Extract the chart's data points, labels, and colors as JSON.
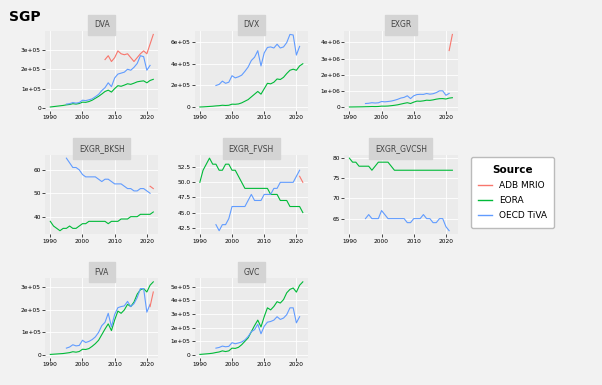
{
  "title": "SGP",
  "panels": [
    {
      "name": "DVA",
      "row": 0,
      "col": 0
    },
    {
      "name": "DVX",
      "row": 0,
      "col": 1
    },
    {
      "name": "EXGR",
      "row": 0,
      "col": 2
    },
    {
      "name": "EXGR_BKSH",
      "row": 1,
      "col": 0
    },
    {
      "name": "EXGR_FVSH",
      "row": 1,
      "col": 1
    },
    {
      "name": "EXGR_GVCSH",
      "row": 1,
      "col": 2
    },
    {
      "name": "FVA",
      "row": 2,
      "col": 0
    },
    {
      "name": "GVC",
      "row": 2,
      "col": 1
    }
  ],
  "years_adb": [
    2007,
    2008,
    2009,
    2010,
    2011,
    2012,
    2013,
    2014,
    2015,
    2016,
    2017,
    2018,
    2019,
    2020,
    2021,
    2022
  ],
  "years_eora": [
    1990,
    1991,
    1992,
    1993,
    1994,
    1995,
    1996,
    1997,
    1998,
    1999,
    2000,
    2001,
    2002,
    2003,
    2004,
    2005,
    2006,
    2007,
    2008,
    2009,
    2010,
    2011,
    2012,
    2013,
    2014,
    2015,
    2016,
    2017,
    2018,
    2019,
    2020,
    2021,
    2022
  ],
  "years_oecd": [
    1995,
    1996,
    1997,
    1998,
    1999,
    2000,
    2001,
    2002,
    2003,
    2004,
    2005,
    2006,
    2007,
    2008,
    2009,
    2010,
    2011,
    2012,
    2013,
    2014,
    2015,
    2016,
    2017,
    2018,
    2019,
    2020,
    2021
  ],
  "DVA": {
    "eora": [
      5000,
      7000,
      9000,
      11000,
      13000,
      16000,
      18000,
      22000,
      20000,
      23000,
      30000,
      29000,
      33000,
      40000,
      50000,
      60000,
      72000,
      85000,
      92000,
      82000,
      100000,
      115000,
      112000,
      118000,
      125000,
      122000,
      128000,
      135000,
      138000,
      140000,
      130000,
      142000,
      148000
    ],
    "oecd": [
      20000,
      22000,
      28000,
      25000,
      28000,
      40000,
      38000,
      42000,
      47000,
      58000,
      70000,
      90000,
      105000,
      130000,
      110000,
      155000,
      175000,
      180000,
      185000,
      200000,
      195000,
      210000,
      230000,
      270000,
      265000,
      195000,
      220000
    ],
    "adb": [
      null,
      null,
      null,
      null,
      null,
      null,
      null,
      null,
      null,
      null,
      null,
      null,
      null,
      null,
      null,
      null,
      null,
      250000,
      270000,
      240000,
      260000,
      295000,
      280000,
      275000,
      280000,
      260000,
      240000,
      260000,
      280000,
      295000,
      280000,
      330000,
      380000
    ]
  },
  "DVX": {
    "eora": [
      2000,
      3000,
      5000,
      7000,
      9000,
      12000,
      14000,
      18000,
      16000,
      18000,
      28000,
      27000,
      30000,
      40000,
      55000,
      70000,
      95000,
      120000,
      145000,
      120000,
      170000,
      220000,
      215000,
      230000,
      260000,
      255000,
      275000,
      310000,
      340000,
      350000,
      340000,
      380000,
      400000
    ],
    "oecd": [
      200000,
      210000,
      240000,
      220000,
      230000,
      290000,
      270000,
      280000,
      295000,
      330000,
      370000,
      430000,
      460000,
      520000,
      380000,
      500000,
      550000,
      555000,
      545000,
      580000,
      545000,
      555000,
      595000,
      670000,
      665000,
      480000,
      560000
    ],
    "adb": [
      null,
      null,
      null,
      null,
      null,
      null,
      null,
      null,
      null,
      null,
      null,
      null,
      null,
      null,
      null,
      null,
      null,
      null,
      null,
      null,
      null,
      null,
      null,
      null,
      null,
      null,
      null,
      null,
      null,
      null,
      null,
      null,
      null
    ]
  },
  "EXGR": {
    "eora": [
      5000,
      7000,
      10000,
      13000,
      16000,
      22000,
      26000,
      34000,
      30000,
      36000,
      58000,
      56000,
      65000,
      85000,
      110000,
      140000,
      185000,
      230000,
      270000,
      220000,
      305000,
      370000,
      360000,
      385000,
      425000,
      415000,
      445000,
      490000,
      520000,
      525000,
      500000,
      555000,
      580000
    ],
    "oecd": [
      220000,
      235000,
      270000,
      250000,
      265000,
      345000,
      325000,
      345000,
      370000,
      420000,
      480000,
      560000,
      600000,
      700000,
      525000,
      700000,
      775000,
      790000,
      785000,
      840000,
      800000,
      825000,
      895000,
      1005000,
      1005000,
      730000,
      845000
    ],
    "adb": [
      null,
      null,
      null,
      null,
      null,
      null,
      null,
      null,
      null,
      null,
      null,
      null,
      null,
      null,
      null,
      null,
      null,
      null,
      null,
      null,
      null,
      null,
      null,
      null,
      null,
      null,
      null,
      null,
      null,
      null,
      null,
      3500000,
      4500000
    ]
  },
  "EXGR_BKSH": {
    "eora": [
      38,
      36,
      35,
      34,
      35,
      35,
      36,
      35,
      35,
      36,
      37,
      37,
      38,
      38,
      38,
      38,
      38,
      38,
      37,
      38,
      38,
      38,
      39,
      39,
      39,
      40,
      40,
      40,
      41,
      41,
      41,
      41,
      42
    ],
    "oecd": [
      65,
      63,
      61,
      61,
      60,
      58,
      57,
      57,
      57,
      57,
      56,
      55,
      56,
      56,
      55,
      54,
      54,
      54,
      53,
      52,
      52,
      51,
      51,
      52,
      52,
      51,
      50
    ],
    "adb": [
      null,
      null,
      null,
      null,
      null,
      null,
      null,
      null,
      null,
      null,
      null,
      null,
      null,
      null,
      null,
      null,
      null,
      null,
      null,
      null,
      null,
      null,
      null,
      null,
      null,
      null,
      null,
      null,
      null,
      null,
      null,
      53,
      52
    ]
  },
  "EXGR_FVSH": {
    "eora": [
      50,
      52,
      53,
      54,
      53,
      53,
      52,
      52,
      53,
      53,
      52,
      52,
      51,
      50,
      49,
      49,
      49,
      49,
      49,
      49,
      49,
      49,
      48,
      48,
      48,
      47,
      47,
      47,
      46,
      46,
      46,
      46,
      45
    ],
    "oecd": [
      43,
      42,
      43,
      43,
      44,
      46,
      46,
      46,
      46,
      46,
      47,
      48,
      47,
      47,
      47,
      48,
      48,
      48,
      49,
      49,
      50,
      50,
      50,
      50,
      50,
      51,
      52
    ],
    "adb": [
      null,
      null,
      null,
      null,
      null,
      null,
      null,
      null,
      null,
      null,
      null,
      null,
      null,
      null,
      null,
      null,
      null,
      null,
      null,
      null,
      null,
      null,
      null,
      null,
      null,
      null,
      null,
      null,
      null,
      null,
      null,
      51,
      50
    ]
  },
  "EXGR_GVCSH": {
    "eora": [
      80,
      79,
      79,
      78,
      78,
      78,
      78,
      77,
      78,
      79,
      79,
      79,
      79,
      78,
      77,
      77,
      77,
      77,
      77,
      77,
      77,
      77,
      77,
      77,
      77,
      77,
      77,
      77,
      77,
      77,
      77,
      77,
      77
    ],
    "oecd": [
      65,
      66,
      65,
      65,
      65,
      67,
      66,
      65,
      65,
      65,
      65,
      65,
      65,
      64,
      64,
      65,
      65,
      65,
      66,
      65,
      65,
      64,
      64,
      65,
      65,
      63,
      62
    ],
    "adb": [
      null,
      null,
      null,
      null,
      null,
      null,
      null,
      null,
      null,
      null,
      null,
      null,
      null,
      null,
      null,
      null,
      null,
      null,
      null,
      null,
      null,
      null,
      null,
      null,
      null,
      null,
      null,
      null,
      null,
      null,
      null,
      null,
      null
    ]
  },
  "FVA": {
    "eora": [
      2000,
      3000,
      4000,
      5000,
      6000,
      8000,
      10000,
      14000,
      12000,
      15000,
      25000,
      24000,
      28000,
      38000,
      50000,
      65000,
      90000,
      115000,
      138000,
      108000,
      155000,
      195000,
      185000,
      200000,
      225000,
      215000,
      235000,
      270000,
      290000,
      295000,
      280000,
      310000,
      325000
    ],
    "oecd": [
      30000,
      35000,
      45000,
      40000,
      42000,
      65000,
      55000,
      60000,
      68000,
      80000,
      100000,
      130000,
      145000,
      185000,
      125000,
      180000,
      210000,
      215000,
      218000,
      238000,
      215000,
      228000,
      255000,
      295000,
      295000,
      190000,
      225000
    ],
    "adb": [
      null,
      null,
      null,
      null,
      null,
      null,
      null,
      null,
      null,
      null,
      null,
      null,
      null,
      null,
      null,
      null,
      null,
      null,
      null,
      null,
      null,
      null,
      null,
      null,
      null,
      null,
      null,
      null,
      null,
      null,
      null,
      215000,
      280000
    ]
  },
  "GVC": {
    "eora": [
      4000,
      6000,
      8000,
      10000,
      13000,
      18000,
      22000,
      30000,
      25000,
      30000,
      50000,
      48000,
      56000,
      75000,
      100000,
      125000,
      170000,
      215000,
      255000,
      205000,
      280000,
      345000,
      330000,
      355000,
      390000,
      380000,
      405000,
      455000,
      480000,
      490000,
      460000,
      510000,
      535000
    ],
    "oecd": [
      50000,
      55000,
      65000,
      60000,
      63000,
      90000,
      82000,
      88000,
      95000,
      110000,
      135000,
      170000,
      185000,
      225000,
      155000,
      210000,
      240000,
      245000,
      255000,
      280000,
      260000,
      270000,
      295000,
      345000,
      345000,
      235000,
      280000
    ],
    "adb": [
      null,
      null,
      null,
      null,
      null,
      null,
      null,
      null,
      null,
      null,
      null,
      null,
      null,
      null,
      null,
      null,
      null,
      null,
      null,
      null,
      null,
      null,
      null,
      null,
      null,
      null,
      null,
      null,
      null,
      null,
      null,
      null,
      null
    ]
  },
  "adb_color": "#f8766d",
  "eora_color": "#00ba38",
  "oecd_color": "#619cff",
  "panel_bg": "#ebebeb",
  "grid_color": "white",
  "fig_bg": "#f2f2f2"
}
